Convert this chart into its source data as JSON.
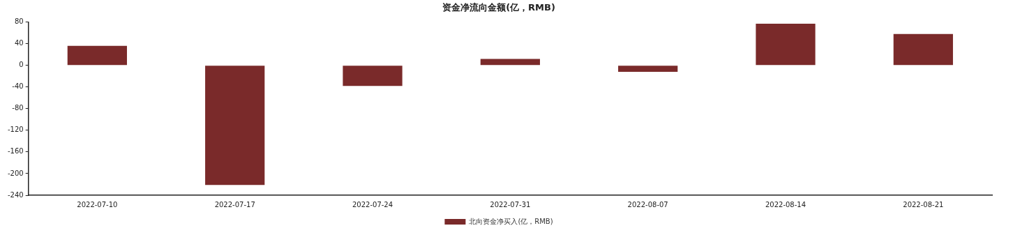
{
  "chart_data": {
    "type": "bar",
    "title": "资金净流向金额(亿，RMB)",
    "categories": [
      "2022-07-10",
      "2022-07-17",
      "2022-07-24",
      "2022-07-31",
      "2022-08-07",
      "2022-08-14",
      "2022-08-21"
    ],
    "series": [
      {
        "name": "北向资金净买入(亿，RMB)",
        "color": "#7a2a2a",
        "values": [
          36,
          -221,
          -38,
          12,
          -12,
          77,
          58
        ]
      }
    ],
    "ylim": [
      -240,
      80
    ],
    "yticks": [
      -240,
      -200,
      -160,
      -120,
      -80,
      -40,
      0,
      40,
      80
    ],
    "grid": false,
    "legend": "bottom"
  }
}
